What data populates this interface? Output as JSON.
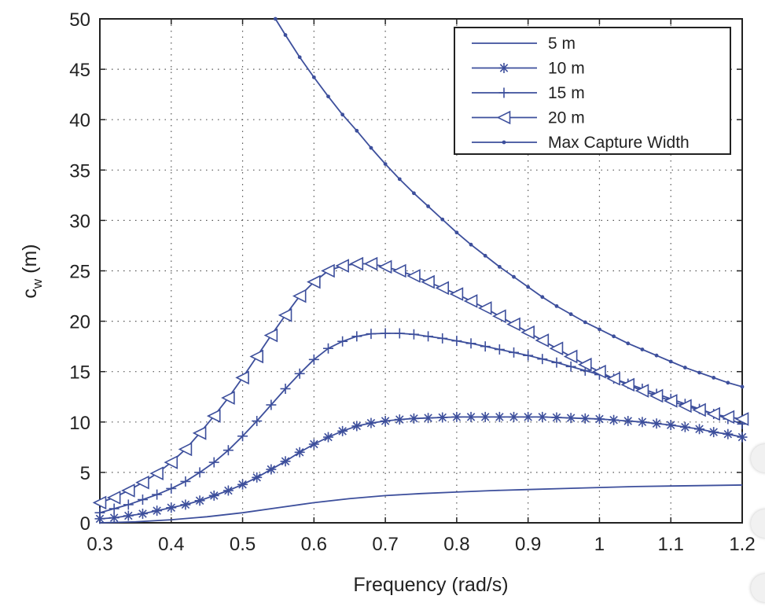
{
  "chart_data": {
    "type": "line",
    "title": "",
    "xlabel": "Frequency (rad/s)",
    "ylabel": "c",
    "ylabel_subscript": "w",
    "ylabel_unit": " (m)",
    "xlim": [
      0.3,
      1.2
    ],
    "ylim": [
      0,
      50
    ],
    "xticks": [
      0.3,
      0.4,
      0.5,
      0.6,
      0.7,
      0.8,
      0.9,
      1.0,
      1.1,
      1.2
    ],
    "xtick_labels": [
      "0.3",
      "0.4",
      "0.5",
      "0.6",
      "0.7",
      "0.8",
      "0.9",
      "1",
      "1.1",
      "1.2"
    ],
    "yticks": [
      0,
      5,
      10,
      15,
      20,
      25,
      30,
      35,
      40,
      45,
      50
    ],
    "ytick_labels": [
      "0",
      "5",
      "10",
      "15",
      "20",
      "25",
      "30",
      "35",
      "40",
      "45",
      "50"
    ],
    "grid": true,
    "legend_position": "top-right",
    "line_color": "#3d4f9c",
    "series": [
      {
        "name": "5 m",
        "marker": "none",
        "x": [
          0.3,
          0.35,
          0.4,
          0.45,
          0.5,
          0.55,
          0.6,
          0.65,
          0.7,
          0.75,
          0.8,
          0.85,
          0.9,
          0.95,
          1.0,
          1.05,
          1.1,
          1.15,
          1.2
        ],
        "y": [
          0.0,
          0.1,
          0.3,
          0.6,
          1.0,
          1.5,
          2.0,
          2.4,
          2.7,
          2.9,
          3.05,
          3.2,
          3.3,
          3.4,
          3.5,
          3.6,
          3.65,
          3.7,
          3.75
        ]
      },
      {
        "name": "10 m",
        "marker": "asterisk",
        "x": [
          0.3,
          0.32,
          0.34,
          0.36,
          0.38,
          0.4,
          0.42,
          0.44,
          0.46,
          0.48,
          0.5,
          0.52,
          0.54,
          0.56,
          0.58,
          0.6,
          0.62,
          0.64,
          0.66,
          0.68,
          0.7,
          0.72,
          0.74,
          0.76,
          0.78,
          0.8,
          0.82,
          0.84,
          0.86,
          0.88,
          0.9,
          0.92,
          0.94,
          0.96,
          0.98,
          1.0,
          1.02,
          1.04,
          1.06,
          1.08,
          1.1,
          1.12,
          1.14,
          1.16,
          1.18,
          1.2
        ],
        "y": [
          0.4,
          0.5,
          0.7,
          0.9,
          1.2,
          1.5,
          1.8,
          2.2,
          2.7,
          3.2,
          3.8,
          4.5,
          5.3,
          6.1,
          7.0,
          7.8,
          8.5,
          9.1,
          9.6,
          9.9,
          10.1,
          10.25,
          10.35,
          10.4,
          10.45,
          10.5,
          10.5,
          10.5,
          10.5,
          10.5,
          10.5,
          10.5,
          10.45,
          10.4,
          10.35,
          10.3,
          10.2,
          10.1,
          10.0,
          9.85,
          9.7,
          9.5,
          9.3,
          9.0,
          8.8,
          8.5
        ]
      },
      {
        "name": "15 m",
        "marker": "plus",
        "x": [
          0.3,
          0.32,
          0.34,
          0.36,
          0.38,
          0.4,
          0.42,
          0.44,
          0.46,
          0.48,
          0.5,
          0.52,
          0.54,
          0.56,
          0.58,
          0.6,
          0.62,
          0.64,
          0.66,
          0.68,
          0.7,
          0.72,
          0.74,
          0.76,
          0.78,
          0.8,
          0.82,
          0.84,
          0.86,
          0.88,
          0.9,
          0.92,
          0.94,
          0.96,
          0.98,
          1.0,
          1.02,
          1.04,
          1.06,
          1.08,
          1.1,
          1.12,
          1.14,
          1.16,
          1.18,
          1.2
        ],
        "y": [
          1.0,
          1.4,
          1.8,
          2.3,
          2.8,
          3.4,
          4.1,
          5.0,
          6.0,
          7.2,
          8.6,
          10.1,
          11.7,
          13.3,
          14.8,
          16.2,
          17.3,
          18.0,
          18.5,
          18.75,
          18.8,
          18.8,
          18.7,
          18.5,
          18.3,
          18.05,
          17.8,
          17.5,
          17.2,
          16.9,
          16.6,
          16.25,
          15.9,
          15.5,
          15.1,
          14.7,
          14.3,
          13.8,
          13.3,
          12.8,
          12.3,
          11.8,
          11.3,
          10.8,
          10.3,
          9.8
        ]
      },
      {
        "name": "20 m",
        "marker": "triangle-left",
        "x": [
          0.3,
          0.32,
          0.34,
          0.36,
          0.38,
          0.4,
          0.42,
          0.44,
          0.46,
          0.48,
          0.5,
          0.52,
          0.54,
          0.56,
          0.58,
          0.6,
          0.62,
          0.64,
          0.66,
          0.68,
          0.7,
          0.72,
          0.74,
          0.76,
          0.78,
          0.8,
          0.82,
          0.84,
          0.86,
          0.88,
          0.9,
          0.92,
          0.94,
          0.96,
          0.98,
          1.0,
          1.02,
          1.04,
          1.06,
          1.08,
          1.1,
          1.12,
          1.14,
          1.16,
          1.18,
          1.2
        ],
        "y": [
          2.0,
          2.5,
          3.2,
          4.0,
          4.9,
          6.0,
          7.3,
          8.9,
          10.6,
          12.4,
          14.4,
          16.5,
          18.6,
          20.6,
          22.5,
          23.9,
          25.0,
          25.5,
          25.7,
          25.7,
          25.4,
          25.0,
          24.5,
          23.9,
          23.3,
          22.7,
          22.0,
          21.3,
          20.5,
          19.7,
          18.9,
          18.1,
          17.3,
          16.5,
          15.7,
          15.0,
          14.3,
          13.7,
          13.1,
          12.6,
          12.1,
          11.6,
          11.2,
          10.8,
          10.5,
          10.3
        ]
      },
      {
        "name": "Max Capture Width",
        "marker": "dot",
        "x": [
          0.546,
          0.56,
          0.58,
          0.6,
          0.62,
          0.64,
          0.66,
          0.68,
          0.7,
          0.72,
          0.74,
          0.76,
          0.78,
          0.8,
          0.82,
          0.84,
          0.86,
          0.88,
          0.9,
          0.92,
          0.94,
          0.96,
          0.98,
          1.0,
          1.02,
          1.04,
          1.06,
          1.08,
          1.1,
          1.12,
          1.14,
          1.16,
          1.18,
          1.2
        ],
        "y": [
          50.0,
          48.4,
          46.2,
          44.2,
          42.3,
          40.5,
          38.9,
          37.2,
          35.6,
          34.1,
          32.7,
          31.4,
          30.1,
          28.8,
          27.6,
          26.5,
          25.4,
          24.4,
          23.4,
          22.4,
          21.5,
          20.7,
          19.9,
          19.2,
          18.5,
          17.8,
          17.2,
          16.6,
          16.0,
          15.4,
          14.9,
          14.4,
          13.9,
          13.5
        ]
      }
    ]
  }
}
